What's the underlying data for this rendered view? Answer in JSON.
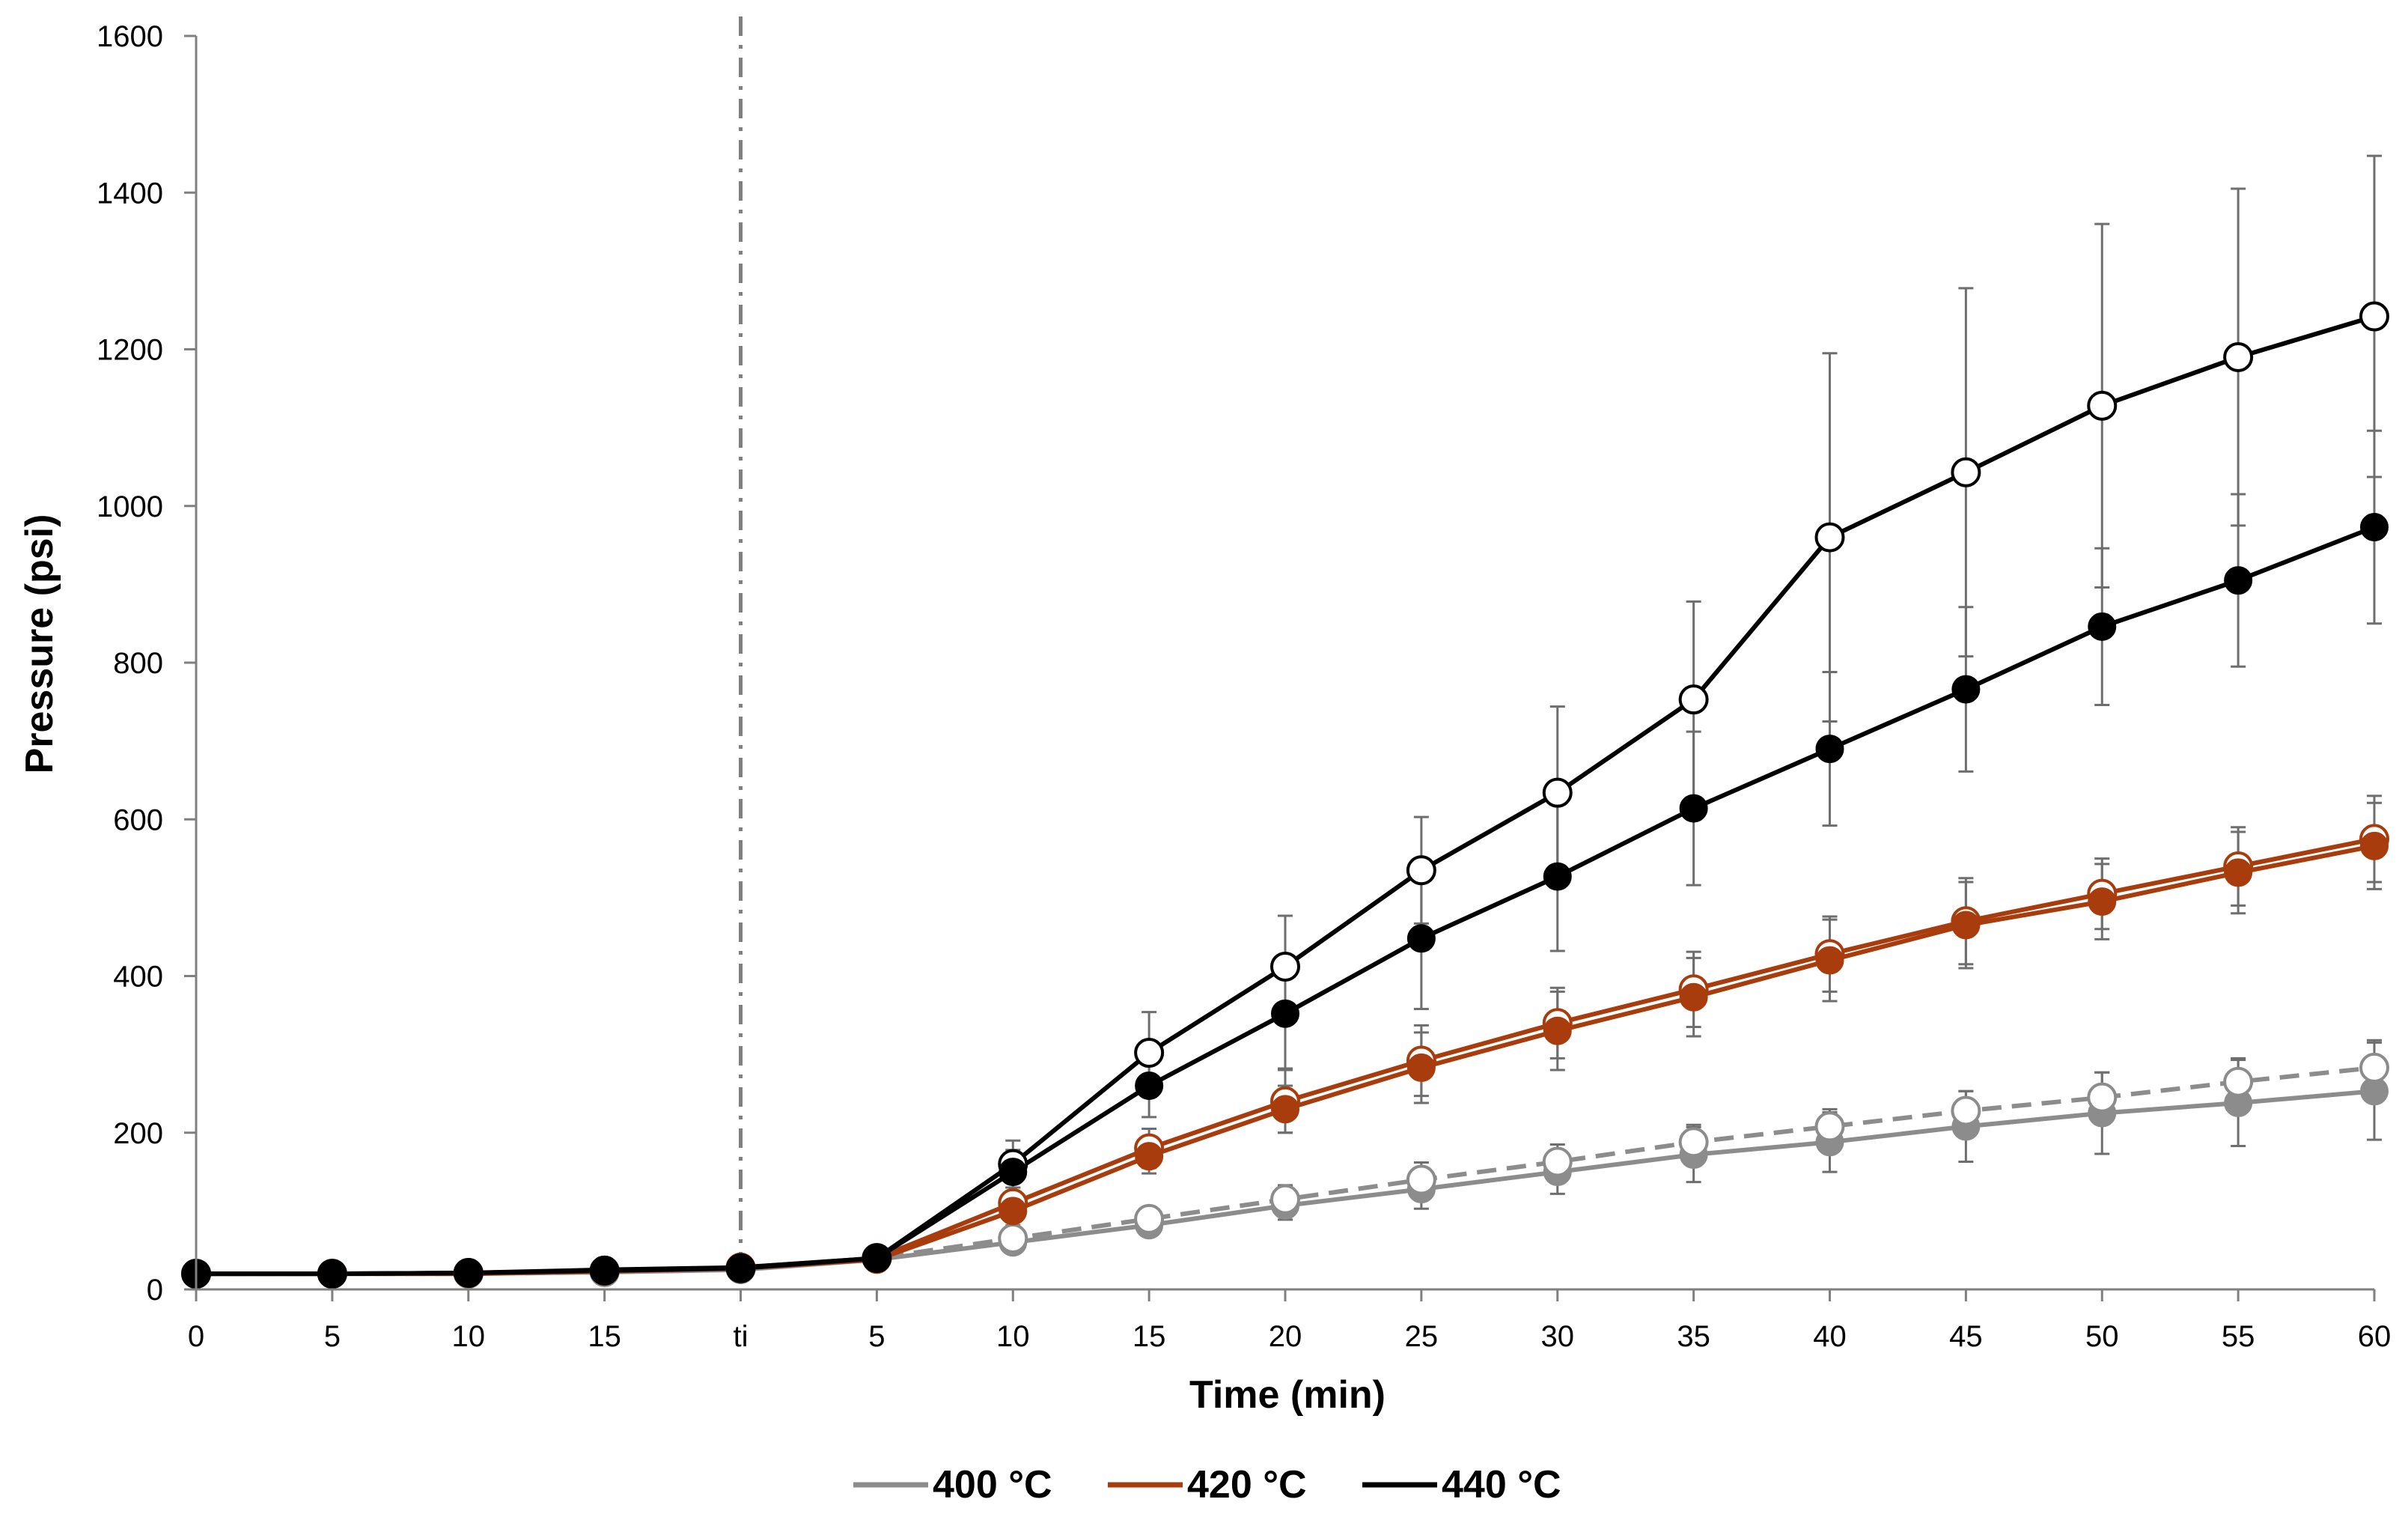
{
  "chart_data": {
    "type": "line",
    "title": "",
    "xlabel": "Time (min)",
    "ylabel": "Pressure (psi)",
    "ylim": [
      0,
      1600
    ],
    "yticks": [
      0,
      200,
      400,
      600,
      800,
      1000,
      1200,
      1400,
      1600
    ],
    "categories": [
      "0",
      "5",
      "10",
      "15",
      "ti",
      "5",
      "10",
      "15",
      "20",
      "25",
      "30",
      "35",
      "40",
      "45",
      "50",
      "55",
      "60"
    ],
    "divider_category": "ti",
    "grid": false,
    "legend_position": "bottom-center",
    "legend": [
      {
        "label": "400 °C",
        "color": "#8c8c8c"
      },
      {
        "label": "420 °C",
        "color": "#a83c0c"
      },
      {
        "label": "440 °C",
        "color": "#000000"
      }
    ],
    "series": [
      {
        "name": "400 °C filled",
        "temperature": "400 °C",
        "color": "#8c8c8c",
        "marker": "filled",
        "dashed": false,
        "values": [
          20,
          20,
          20,
          22,
          25,
          38,
          60,
          82,
          107,
          128,
          150,
          172,
          188,
          208,
          225,
          238,
          253
        ],
        "errors": [
          0,
          0,
          0,
          0,
          0,
          0,
          10,
          12,
          18,
          25,
          28,
          35,
          38,
          45,
          52,
          55,
          62
        ]
      },
      {
        "name": "400 °C open",
        "temperature": "400 °C",
        "color": "#8c8c8c",
        "marker": "open",
        "dashed": true,
        "values": [
          20,
          20,
          20,
          22,
          26,
          40,
          65,
          90,
          115,
          140,
          163,
          188,
          208,
          228,
          245,
          265,
          283
        ],
        "errors": [
          0,
          0,
          0,
          0,
          0,
          0,
          12,
          14,
          18,
          22,
          22,
          22,
          22,
          25,
          32,
          30,
          35
        ]
      },
      {
        "name": "420 °C filled",
        "temperature": "420 °C",
        "color": "#a83c0c",
        "marker": "filled",
        "dashed": false,
        "values": [
          20,
          20,
          20,
          23,
          27,
          38,
          100,
          170,
          230,
          283,
          330,
          373,
          420,
          465,
          495,
          532,
          566
        ],
        "errors": [
          0,
          0,
          0,
          0,
          0,
          0,
          18,
          22,
          30,
          45,
          50,
          50,
          52,
          55,
          48,
          52,
          55
        ]
      },
      {
        "name": "420 °C open",
        "temperature": "420 °C",
        "color": "#a83c0c",
        "marker": "open",
        "dashed": false,
        "values": [
          20,
          20,
          21,
          24,
          28,
          40,
          110,
          180,
          240,
          292,
          340,
          383,
          428,
          470,
          505,
          540,
          575
        ],
        "errors": [
          0,
          0,
          0,
          0,
          0,
          0,
          20,
          25,
          40,
          45,
          45,
          48,
          48,
          55,
          45,
          50,
          55
        ]
      },
      {
        "name": "440 °C filled",
        "temperature": "440 °C",
        "color": "#000000",
        "marker": "filled",
        "dashed": false,
        "values": [
          20,
          20,
          21,
          25,
          28,
          40,
          150,
          260,
          352,
          448,
          527,
          614,
          690,
          766,
          846,
          905,
          973
        ],
        "errors": [
          0,
          0,
          0,
          0,
          0,
          0,
          28,
          40,
          70,
          90,
          95,
          98,
          98,
          105,
          100,
          110,
          123
        ]
      },
      {
        "name": "440 °C open",
        "temperature": "440 °C",
        "color": "#000000",
        "marker": "open",
        "dashed": false,
        "values": [
          20,
          20,
          21,
          24,
          27,
          40,
          160,
          302,
          412,
          535,
          634,
          753,
          960,
          1043,
          1128,
          1190,
          1242
        ],
        "errors": [
          0,
          0,
          0,
          0,
          0,
          0,
          30,
          52,
          65,
          68,
          110,
          125,
          235,
          235,
          232,
          215,
          205
        ]
      }
    ]
  }
}
